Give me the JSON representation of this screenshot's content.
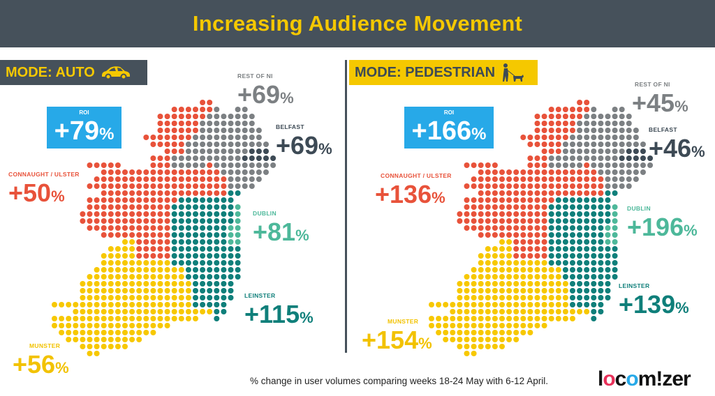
{
  "header": {
    "title": "Increasing Audience Movement"
  },
  "colors": {
    "connaught_ulster": "#e8523a",
    "rest_of_ni": "#7c8083",
    "belfast": "#3d4a55",
    "dublin": "#4db89a",
    "leinster": "#0f7f7a",
    "munster": "#f7c800",
    "roi": "#27a9e8"
  },
  "panels": [
    {
      "mode": "MODE: AUTO",
      "icon": "car-icon",
      "roi": {
        "label": "ROI",
        "value": "+79",
        "unit": "%"
      },
      "rest_of_ni": {
        "label": "REST OF NI",
        "value": "+69",
        "unit": "%"
      },
      "belfast": {
        "label": "BELFAST",
        "value": "+69",
        "unit": "%"
      },
      "connaught_ulster": {
        "label": "CONNAUGHT / ULSTER",
        "value": "+50",
        "unit": "%"
      },
      "dublin": {
        "label": "DUBLIN",
        "value": "+81",
        "unit": "%"
      },
      "leinster": {
        "label": "LEINSTER",
        "value": "+115",
        "unit": "%"
      },
      "munster": {
        "label": "MUNSTER",
        "value": "+56",
        "unit": "%"
      }
    },
    {
      "mode": "MODE: PEDESTRIAN",
      "icon": "dog-walker-icon",
      "roi": {
        "label": "ROI",
        "value": "+166",
        "unit": "%"
      },
      "rest_of_ni": {
        "label": "REST OF NI",
        "value": "+45",
        "unit": "%"
      },
      "belfast": {
        "label": "BELFAST",
        "value": "+46",
        "unit": "%"
      },
      "connaught_ulster": {
        "label": "CONNAUGHT / ULSTER",
        "value": "+136",
        "unit": "%"
      },
      "dublin": {
        "label": "DUBLIN",
        "value": "+196",
        "unit": "%"
      },
      "leinster": {
        "label": "LEINSTER",
        "value": "+139",
        "unit": "%"
      },
      "munster": {
        "label": "MUNSTER",
        "value": "+154",
        "unit": "%"
      }
    }
  ],
  "footer": {
    "note": "% change in user volumes comparing weeks 18-24 May with 6-12 April.",
    "logo": "locomizer"
  }
}
